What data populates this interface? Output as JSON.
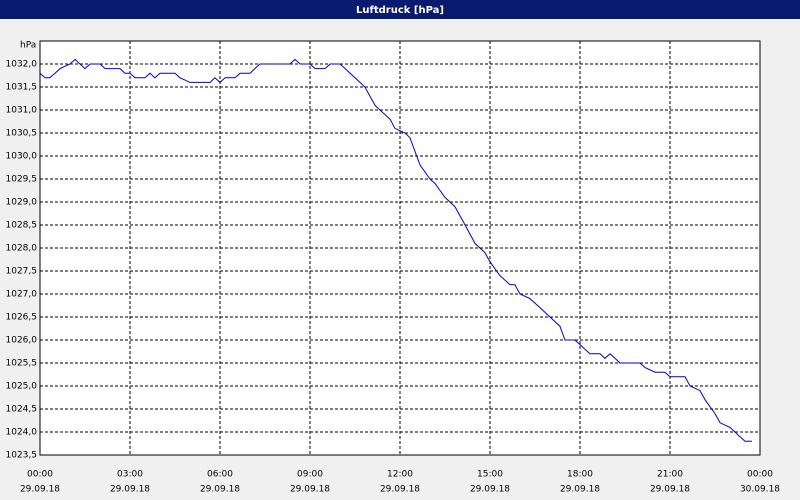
{
  "chart_data": {
    "type": "line",
    "title": "Luftdruck [hPa]",
    "y_label": "hPa",
    "x": [
      0,
      0.17,
      0.33,
      0.5,
      0.67,
      1.0,
      1.17,
      1.33,
      1.5,
      1.67,
      2.0,
      2.17,
      2.67,
      2.83,
      3.0,
      3.17,
      3.5,
      3.67,
      3.83,
      4.0,
      4.5,
      4.67,
      5.0,
      5.67,
      5.83,
      6.0,
      6.17,
      6.5,
      6.67,
      7.0,
      7.33,
      8.33,
      8.5,
      8.67,
      9.0,
      9.17,
      9.5,
      9.67,
      10.0,
      10.17,
      10.5,
      10.83,
      11.17,
      11.33,
      11.67,
      11.83,
      12.17,
      12.33,
      12.5,
      12.67,
      13.0,
      13.17,
      13.5,
      13.83,
      14.17,
      14.5,
      14.83,
      15.0,
      15.33,
      15.67,
      15.83,
      16.0,
      16.33,
      16.67,
      17.0,
      17.33,
      17.5,
      17.83,
      18.0,
      18.33,
      18.67,
      18.83,
      19.0,
      19.17,
      19.33,
      20.0,
      20.17,
      20.5,
      20.83,
      21.0,
      21.5,
      21.67,
      22.0,
      22.17,
      22.5,
      22.67,
      23.0,
      23.33,
      23.5,
      23.73
    ],
    "values": [
      1031.8,
      1031.7,
      1031.7,
      1031.8,
      1031.9,
      1032.0,
      1032.1,
      1032.0,
      1031.9,
      1032.0,
      1032.0,
      1031.9,
      1031.9,
      1031.8,
      1031.8,
      1031.7,
      1031.7,
      1031.8,
      1031.7,
      1031.8,
      1031.8,
      1031.7,
      1031.6,
      1031.6,
      1031.7,
      1031.6,
      1031.7,
      1031.7,
      1031.8,
      1031.8,
      1032.0,
      1032.0,
      1032.1,
      1032.0,
      1032.0,
      1031.9,
      1031.9,
      1032.0,
      1032.0,
      1031.9,
      1031.7,
      1031.5,
      1031.1,
      1031.0,
      1030.8,
      1030.6,
      1030.5,
      1030.4,
      1030.1,
      1029.8,
      1029.5,
      1029.4,
      1029.1,
      1028.9,
      1028.5,
      1028.1,
      1027.9,
      1027.7,
      1027.4,
      1027.2,
      1027.2,
      1027.0,
      1026.9,
      1026.7,
      1026.5,
      1026.3,
      1026.0,
      1026.0,
      1025.9,
      1025.7,
      1025.7,
      1025.6,
      1025.7,
      1025.6,
      1025.5,
      1025.5,
      1025.4,
      1025.3,
      1025.3,
      1025.2,
      1025.2,
      1025.0,
      1024.9,
      1024.7,
      1024.4,
      1024.2,
      1024.1,
      1023.9,
      1023.8,
      1023.8
    ],
    "color": "#0000cc",
    "xlim": [
      0,
      24
    ],
    "xticks": [
      {
        "value": 0,
        "label": "00:00"
      },
      {
        "value": 3,
        "label": "03:00"
      },
      {
        "value": 6,
        "label": "06:00"
      },
      {
        "value": 9,
        "label": "09:00"
      },
      {
        "value": 12,
        "label": "12:00"
      },
      {
        "value": 15,
        "label": "15:00"
      },
      {
        "value": 18,
        "label": "18:00"
      },
      {
        "value": 21,
        "label": "21:00"
      },
      {
        "value": 24,
        "label": "00:00"
      }
    ],
    "xtick_dates": [
      "29.09.18",
      "29.09.18",
      "29.09.18",
      "29.09.18",
      "29.09.18",
      "29.09.18",
      "29.09.18",
      "29.09.18",
      "30.09.18"
    ],
    "ylim": [
      1023.5,
      1032.5
    ],
    "yticks": [
      {
        "value": 1023.5,
        "label": "1023,5"
      },
      {
        "value": 1024.0,
        "label": "1024,0"
      },
      {
        "value": 1024.5,
        "label": "1024,5"
      },
      {
        "value": 1025.0,
        "label": "1025,0"
      },
      {
        "value": 1025.5,
        "label": "1025,5"
      },
      {
        "value": 1026.0,
        "label": "1026,0"
      },
      {
        "value": 1026.5,
        "label": "1026,5"
      },
      {
        "value": 1027.0,
        "label": "1027,0"
      },
      {
        "value": 1027.5,
        "label": "1027,5"
      },
      {
        "value": 1028.0,
        "label": "1028,0"
      },
      {
        "value": 1028.5,
        "label": "1028,5"
      },
      {
        "value": 1029.0,
        "label": "1029,0"
      },
      {
        "value": 1029.5,
        "label": "1029,5"
      },
      {
        "value": 1030.0,
        "label": "1030,0"
      },
      {
        "value": 1030.5,
        "label": "1030,5"
      },
      {
        "value": 1031.0,
        "label": "1031,0"
      },
      {
        "value": 1031.5,
        "label": "1031,5"
      },
      {
        "value": 1032.0,
        "label": "1032,0"
      }
    ],
    "grid": true
  }
}
